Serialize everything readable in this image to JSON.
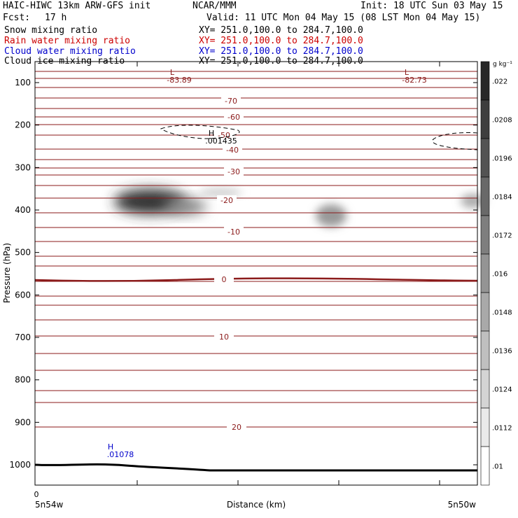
{
  "header": {
    "title": "HAIC-HIWC 13km ARW-GFS init",
    "org": "NCAR/MMM",
    "init": "Init: 18 UTC Sun 03 May 15",
    "fcst_label": "Fcst:",
    "fcst_value": "17 h",
    "valid": "Valid: 11 UTC Mon 04 May 15 (08 LST Mon 04 May 15)",
    "fields": [
      {
        "name": "Snow mixing ratio",
        "xy": "XY= 251.0,100.0 to 284.7,100.0",
        "color": "#000000"
      },
      {
        "name": "Rain water mixing ratio",
        "xy": "XY= 251.0,100.0 to 284.7,100.0",
        "color": "#cc0000"
      },
      {
        "name": "Cloud water mixing ratio",
        "xy": "XY= 251.0,100.0 to 284.7,100.0",
        "color": "#0000cc"
      },
      {
        "name": "Cloud ice mixing ratio",
        "xy": "XY= 251.0,100.0 to 284.7,100.0",
        "color": "#000000"
      }
    ]
  },
  "chart_data": {
    "type": "heatmap",
    "ylabel": "Pressure (hPa)",
    "xlabel": "Distance (km)",
    "y_ticks": [
      100,
      200,
      300,
      400,
      500,
      600,
      700,
      800,
      900,
      1000
    ],
    "x_tick_labels": [
      "0"
    ],
    "x_end_labels": [
      "5n54w",
      "5n50w"
    ],
    "colorbar": {
      "unit": "g kg⁻¹",
      "ticks": [
        ".022",
        ".0208",
        ".0196",
        ".0184",
        ".0172",
        ".016",
        ".0148",
        ".0136",
        ".0124",
        ".0112",
        ".01"
      ]
    },
    "isotherm_labels": [
      "-70",
      "-60",
      "-50",
      "-40",
      "-30",
      "-20",
      "-10",
      "0",
      "10",
      "20"
    ],
    "extrema": [
      {
        "type": "L",
        "value": "-83.89",
        "color": "#8b1a1a"
      },
      {
        "type": "L",
        "value": "-82.73",
        "color": "#8b1a1a"
      },
      {
        "type": "H",
        "value": ".001435",
        "color": "#000000"
      },
      {
        "type": "H",
        "value": ".01078",
        "color": "#0000cc"
      }
    ]
  }
}
